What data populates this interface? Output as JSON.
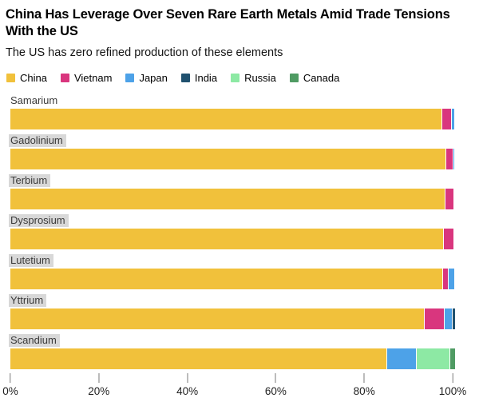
{
  "chart_data": {
    "type": "bar",
    "orientation": "horizontal",
    "stacked": true,
    "title": "China Has Leverage Over Seven Rare Earth Metals Amid Trade Tensions With the US",
    "subtitle": "The US has zero refined production of these elements",
    "unit": "%",
    "categories": [
      "Samarium",
      "Gadolinium",
      "Terbium",
      "Dysprosium",
      "Lutetium",
      "Yttrium",
      "Scandium"
    ],
    "category_label_highlighted": [
      false,
      true,
      true,
      true,
      true,
      true,
      true
    ],
    "series": [
      {
        "name": "China",
        "color": "#F1C13B",
        "values": [
          97.5,
          98.4,
          98.2,
          97.8,
          97.6,
          93.5,
          85.0
        ]
      },
      {
        "name": "Vietnam",
        "color": "#D9367E",
        "values": [
          2.0,
          1.4,
          1.8,
          2.2,
          1.2,
          4.4,
          0
        ]
      },
      {
        "name": "Japan",
        "color": "#4DA2E8",
        "values": [
          0.5,
          0.2,
          0,
          0,
          1.2,
          1.6,
          6.5
        ]
      },
      {
        "name": "India",
        "color": "#20516F",
        "values": [
          0,
          0,
          0,
          0,
          0,
          0.5,
          0
        ]
      },
      {
        "name": "Russia",
        "color": "#8DE9A4",
        "values": [
          0,
          0,
          0,
          0,
          0,
          0,
          7.5
        ]
      },
      {
        "name": "Canada",
        "color": "#4F9B63",
        "values": [
          0,
          0,
          0,
          0,
          0,
          0,
          1.0
        ]
      }
    ],
    "x_ticks": [
      {
        "value": 0,
        "label": "0%"
      },
      {
        "value": 20,
        "label": "20%"
      },
      {
        "value": 40,
        "label": "40%"
      },
      {
        "value": 60,
        "label": "60%"
      },
      {
        "value": 80,
        "label": "80%"
      },
      {
        "value": 100,
        "label": "100%"
      }
    ],
    "xlim": [
      0,
      100
    ],
    "grid": false,
    "legend_position": "top",
    "category_label_bg_color": "#d8d8d8",
    "tick_color": "#7a7a7a"
  }
}
